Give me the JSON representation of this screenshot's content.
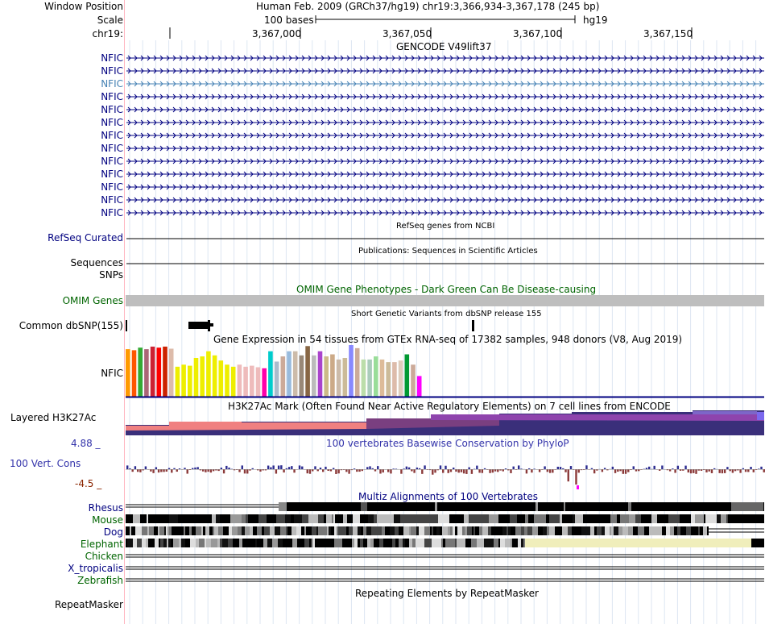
{
  "colors": {
    "navy": "#000080",
    "teal": "#4682b4",
    "green": "#006400",
    "phylop_label": "#3333aa",
    "gtex": [
      "#ff9900",
      "#ff5500",
      "#33aa33",
      "#aa6677",
      "#cc2233",
      "#ff0000",
      "#cc2200",
      "#ddbbaa",
      "#eeee00",
      "#eeee00",
      "#eeee00",
      "#eeee00",
      "#eeee00",
      "#eeee00",
      "#eeee00",
      "#eeee00",
      "#eeee00",
      "#eeee00",
      "#eebbbb",
      "#eebbbb",
      "#eebbbb",
      "#eebbbb",
      "#ff00aa",
      "#00cccc",
      "#aabbcc",
      "#ccaa99",
      "#99bbdd",
      "#ccbbaa",
      "#998877",
      "#886644",
      "#bbbbbb",
      "#aa44cc",
      "#ccbb88",
      "#ccaa88",
      "#ccbbaa",
      "#ccbb99",
      "#8888ff",
      "#ccaa99",
      "#bbddaa",
      "#aaccbb",
      "#99dd99",
      "#ddbb99",
      "#ccbb99",
      "#ddbbaa",
      "#ddccbb",
      "#009933",
      "#ccaa99",
      "#ff00ff"
    ]
  },
  "header": {
    "window_position_label": "Window Position",
    "window_position_value": "Human Feb. 2009 (GRCh37/hg19)   chr19:3,366,934-3,367,178 (245 bp)",
    "scale_label": "Scale",
    "scale_value": "100 bases",
    "assembly": "hg19",
    "chrom_label": "chr19:",
    "ticks": [
      "3,367,000",
      "3,367,050",
      "3,367,100",
      "3,367,150"
    ]
  },
  "gencode": {
    "title": "GENCODE V49lift37",
    "transcripts": [
      "NFIC",
      "NFIC",
      "NFIC",
      "NFIC",
      "NFIC",
      "NFIC",
      "NFIC",
      "NFIC",
      "NFIC",
      "NFIC",
      "NFIC",
      "NFIC",
      "NFIC"
    ],
    "highlight_index": 2
  },
  "refseq": {
    "title": "RefSeq genes from NCBI",
    "label": "RefSeq Curated"
  },
  "pubs": {
    "title": "Publications: Sequences in Scientific Articles",
    "label1": "Sequences",
    "label2": "SNPs"
  },
  "omim": {
    "title": "OMIM Gene Phenotypes - Dark Green Can Be Disease-causing",
    "label": "OMIM Genes"
  },
  "dbsnp": {
    "title": "Short Genetic Variants from dbSNP release 155",
    "label": "Common dbSNP(155)"
  },
  "gtex": {
    "title": "Gene Expression in 54 tissues from GTEx RNA-seq of 17382 samples, 948 donors (V8, Aug 2019)",
    "label": "NFIC",
    "values": [
      0.92,
      0.9,
      0.95,
      0.92,
      0.97,
      0.95,
      0.97,
      0.93,
      0.58,
      0.62,
      0.6,
      0.75,
      0.78,
      0.88,
      0.8,
      0.7,
      0.62,
      0.58,
      0.62,
      0.58,
      0.6,
      0.57,
      0.55,
      0.88,
      0.68,
      0.78,
      0.88,
      0.88,
      0.8,
      0.98,
      0.8,
      0.88,
      0.78,
      0.82,
      0.72,
      0.75,
      1.0,
      0.94,
      0.72,
      0.72,
      0.78,
      0.72,
      0.67,
      0.67,
      0.7,
      0.82,
      0.62,
      0.4
    ]
  },
  "h3k27ac": {
    "title": "H3K27Ac Mark (Often Found Near Active Regulatory Elements) on 7 cell lines from ENCODE",
    "label": "Layered H3K27Ac"
  },
  "phylop": {
    "title": "100 vertebrates Basewise Conservation by PhyloP",
    "label": "100 Vert. Cons",
    "max_label": "4.88 _",
    "min_label": "-4.5 _",
    "ylim": [
      -4.5,
      4.88
    ]
  },
  "multiz": {
    "title": "Multiz Alignments of 100 Vertebrates",
    "species": [
      {
        "name": "Rhesus",
        "color": "#000080"
      },
      {
        "name": "Mouse",
        "color": "#006400"
      },
      {
        "name": "Dog",
        "color": "#000080"
      },
      {
        "name": "Elephant",
        "color": "#006400"
      },
      {
        "name": "Chicken",
        "color": "#006400"
      },
      {
        "name": "X_tropicalis",
        "color": "#000080"
      },
      {
        "name": "Zebrafish",
        "color": "#006400"
      }
    ]
  },
  "repeatmasker": {
    "title": "Repeating Elements by RepeatMasker",
    "label": "RepeatMasker"
  }
}
